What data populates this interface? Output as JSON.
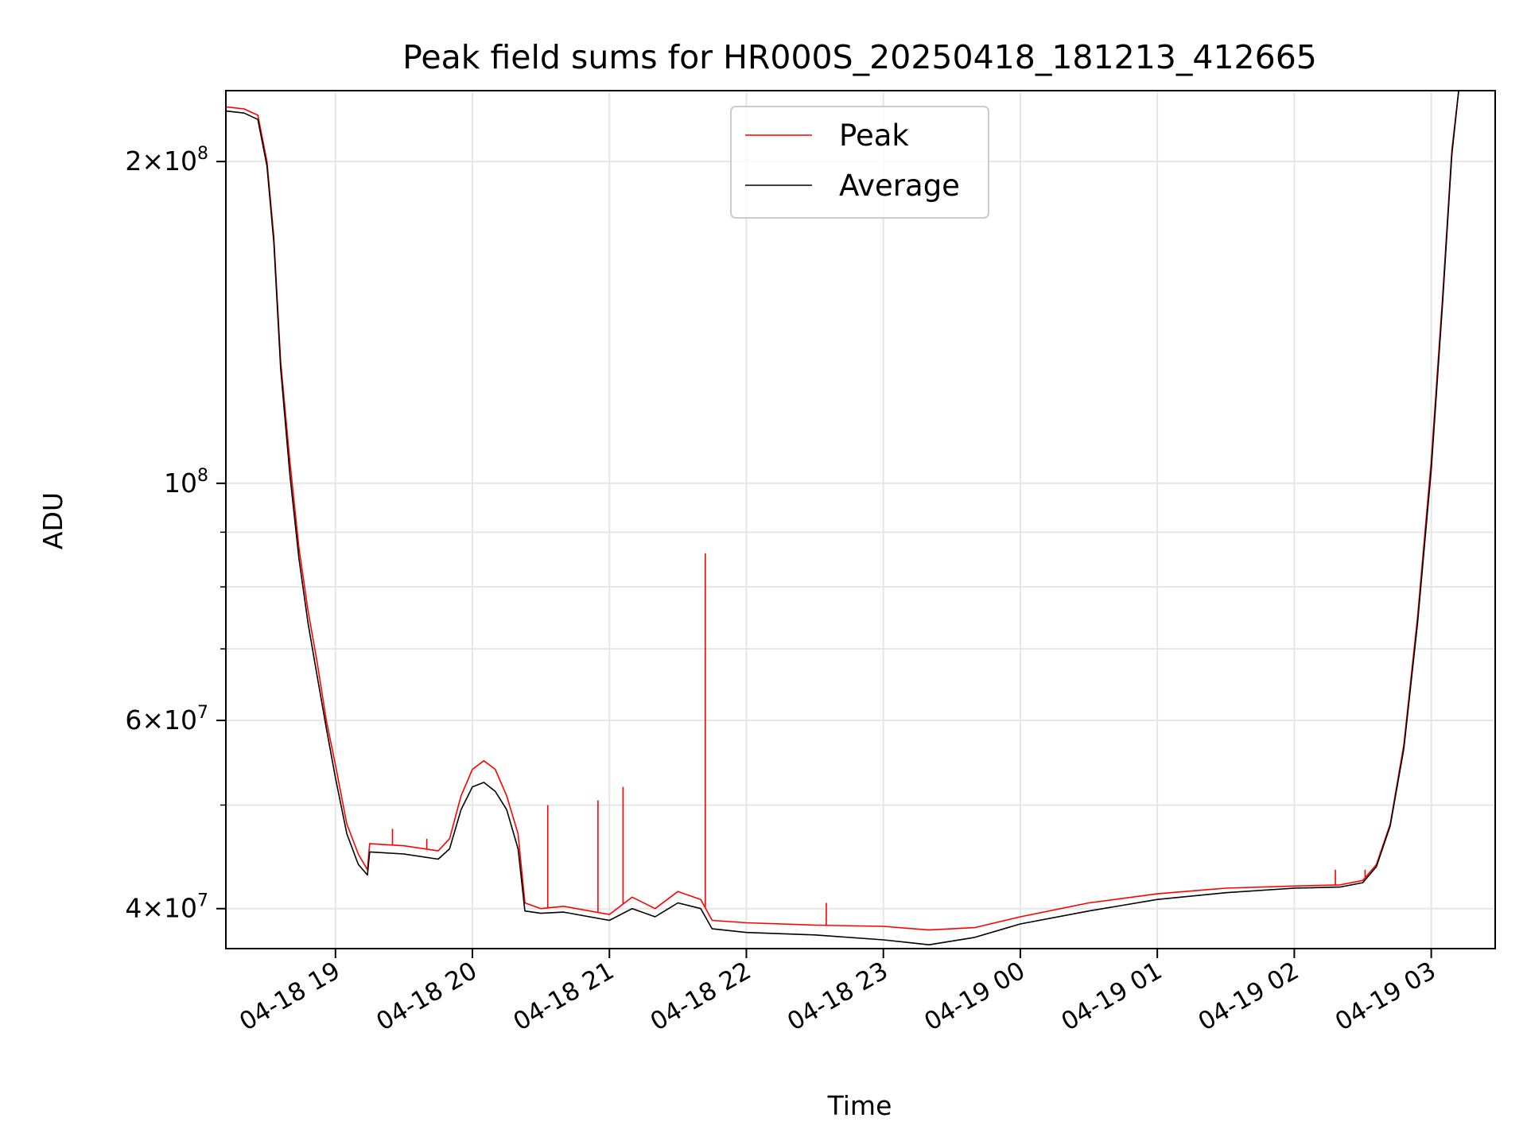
{
  "chart_data": {
    "type": "line",
    "title": "Peak field sums for HR000S_20250418_181213_412665",
    "xlabel": "Time",
    "ylabel": "ADU",
    "yscale": "log",
    "ylim": [
      36700000,
      233000000
    ],
    "xlim": [
      "2025-04-18 18:12",
      "2025-04-19 03:28"
    ],
    "grid": true,
    "legend_position": "upper center",
    "x_ticks": [
      {
        "t": "2025-04-18 19:00",
        "label": "04-18 19"
      },
      {
        "t": "2025-04-18 20:00",
        "label": "04-18 20"
      },
      {
        "t": "2025-04-18 21:00",
        "label": "04-18 21"
      },
      {
        "t": "2025-04-18 22:00",
        "label": "04-18 22"
      },
      {
        "t": "2025-04-18 23:00",
        "label": "04-18 23"
      },
      {
        "t": "2025-04-19 00:00",
        "label": "04-19 00"
      },
      {
        "t": "2025-04-19 01:00",
        "label": "04-19 01"
      },
      {
        "t": "2025-04-19 02:00",
        "label": "04-19 02"
      },
      {
        "t": "2025-04-19 03:00",
        "label": "04-19 03"
      }
    ],
    "y_major_ticks": [
      {
        "v": 40000000,
        "mant": "4",
        "exp": "7"
      },
      {
        "v": 60000000,
        "mant": "6",
        "exp": "7"
      },
      {
        "v": 100000000,
        "mant": "",
        "exp": "8"
      },
      {
        "v": 200000000,
        "mant": "2",
        "exp": "8"
      }
    ],
    "y_minor_ticks": [
      50000000,
      70000000,
      80000000,
      90000000
    ],
    "series": [
      {
        "name": "Peak",
        "color": "#ff0000",
        "points": [
          [
            "2025-04-18 18:12",
            225000000
          ],
          [
            "2025-04-18 18:20",
            224000000
          ],
          [
            "2025-04-18 18:26",
            221000000
          ],
          [
            "2025-04-18 18:30",
            200000000
          ],
          [
            "2025-04-18 18:33",
            170000000
          ],
          [
            "2025-04-18 18:36",
            130000000
          ],
          [
            "2025-04-18 18:40",
            105000000
          ],
          [
            "2025-04-18 18:44",
            87000000
          ],
          [
            "2025-04-18 18:48",
            76000000
          ],
          [
            "2025-04-18 18:52",
            68000000
          ],
          [
            "2025-04-18 18:56",
            60000000
          ],
          [
            "2025-04-18 19:00",
            54500000
          ],
          [
            "2025-04-18 19:05",
            48000000
          ],
          [
            "2025-04-18 19:10",
            45000000
          ],
          [
            "2025-04-18 19:14",
            43500000
          ],
          [
            "2025-04-18 19:15",
            46000000
          ],
          [
            "2025-04-18 19:30",
            45800000
          ],
          [
            "2025-04-18 19:45",
            45300000
          ],
          [
            "2025-04-18 19:50",
            46500000
          ],
          [
            "2025-04-18 19:55",
            51000000
          ],
          [
            "2025-04-18 20:00",
            54000000
          ],
          [
            "2025-04-18 20:05",
            55000000
          ],
          [
            "2025-04-18 20:10",
            54000000
          ],
          [
            "2025-04-18 20:15",
            51000000
          ],
          [
            "2025-04-18 20:20",
            47000000
          ],
          [
            "2025-04-18 20:23",
            40500000
          ],
          [
            "2025-04-18 20:30",
            40000000
          ],
          [
            "2025-04-18 20:40",
            40200000
          ],
          [
            "2025-04-18 21:00",
            39500000
          ],
          [
            "2025-04-18 21:10",
            41000000
          ],
          [
            "2025-04-18 21:20",
            40000000
          ],
          [
            "2025-04-18 21:30",
            41500000
          ],
          [
            "2025-04-18 21:40",
            40800000
          ],
          [
            "2025-04-18 21:45",
            39000000
          ],
          [
            "2025-04-18 22:00",
            38800000
          ],
          [
            "2025-04-18 22:30",
            38600000
          ],
          [
            "2025-04-18 23:00",
            38500000
          ],
          [
            "2025-04-18 23:20",
            38200000
          ],
          [
            "2025-04-18 23:40",
            38400000
          ],
          [
            "2025-04-19 00:00",
            39300000
          ],
          [
            "2025-04-19 00:30",
            40500000
          ],
          [
            "2025-04-19 01:00",
            41300000
          ],
          [
            "2025-04-19 01:30",
            41800000
          ],
          [
            "2025-04-19 02:00",
            42000000
          ],
          [
            "2025-04-19 02:20",
            42100000
          ],
          [
            "2025-04-19 02:30",
            42500000
          ],
          [
            "2025-04-19 02:36",
            44000000
          ],
          [
            "2025-04-19 02:42",
            48000000
          ],
          [
            "2025-04-19 02:48",
            57000000
          ],
          [
            "2025-04-19 02:54",
            75000000
          ],
          [
            "2025-04-19 03:00",
            105000000
          ],
          [
            "2025-04-19 03:05",
            150000000
          ],
          [
            "2025-04-19 03:09",
            205000000
          ],
          [
            "2025-04-19 03:12",
            233000000
          ]
        ],
        "spikes": [
          [
            "2025-04-18 19:25",
            47500000
          ],
          [
            "2025-04-18 19:40",
            46500000
          ],
          [
            "2025-04-18 20:33",
            50000000
          ],
          [
            "2025-04-18 20:55",
            50500000
          ],
          [
            "2025-04-18 21:06",
            52000000
          ],
          [
            "2025-04-18 21:42",
            86000000
          ],
          [
            "2025-04-18 22:35",
            40500000
          ],
          [
            "2025-04-19 02:18",
            43500000
          ],
          [
            "2025-04-19 02:31",
            43500000
          ]
        ]
      },
      {
        "name": "Average",
        "color": "#000000",
        "points": [
          [
            "2025-04-18 18:12",
            223000000
          ],
          [
            "2025-04-18 18:20",
            222000000
          ],
          [
            "2025-04-18 18:26",
            219000000
          ],
          [
            "2025-04-18 18:30",
            198000000
          ],
          [
            "2025-04-18 18:33",
            168000000
          ],
          [
            "2025-04-18 18:36",
            128000000
          ],
          [
            "2025-04-18 18:40",
            102000000
          ],
          [
            "2025-04-18 18:44",
            85000000
          ],
          [
            "2025-04-18 18:48",
            74000000
          ],
          [
            "2025-04-18 18:52",
            66000000
          ],
          [
            "2025-04-18 18:56",
            59000000
          ],
          [
            "2025-04-18 19:00",
            53000000
          ],
          [
            "2025-04-18 19:05",
            47000000
          ],
          [
            "2025-04-18 19:10",
            44000000
          ],
          [
            "2025-04-18 19:14",
            43000000
          ],
          [
            "2025-04-18 19:15",
            45200000
          ],
          [
            "2025-04-18 19:30",
            45000000
          ],
          [
            "2025-04-18 19:45",
            44500000
          ],
          [
            "2025-04-18 19:50",
            45500000
          ],
          [
            "2025-04-18 19:55",
            49500000
          ],
          [
            "2025-04-18 20:00",
            52000000
          ],
          [
            "2025-04-18 20:05",
            52500000
          ],
          [
            "2025-04-18 20:10",
            51500000
          ],
          [
            "2025-04-18 20:15",
            49500000
          ],
          [
            "2025-04-18 20:20",
            45500000
          ],
          [
            "2025-04-18 20:23",
            39800000
          ],
          [
            "2025-04-18 20:30",
            39600000
          ],
          [
            "2025-04-18 20:40",
            39700000
          ],
          [
            "2025-04-18 21:00",
            39000000
          ],
          [
            "2025-04-18 21:10",
            40000000
          ],
          [
            "2025-04-18 21:20",
            39300000
          ],
          [
            "2025-04-18 21:30",
            40500000
          ],
          [
            "2025-04-18 21:40",
            40000000
          ],
          [
            "2025-04-18 21:45",
            38300000
          ],
          [
            "2025-04-18 22:00",
            38000000
          ],
          [
            "2025-04-18 22:30",
            37800000
          ],
          [
            "2025-04-18 23:00",
            37400000
          ],
          [
            "2025-04-18 23:20",
            37000000
          ],
          [
            "2025-04-18 23:40",
            37600000
          ],
          [
            "2025-04-19 00:00",
            38700000
          ],
          [
            "2025-04-19 00:30",
            39800000
          ],
          [
            "2025-04-19 01:00",
            40800000
          ],
          [
            "2025-04-19 01:30",
            41400000
          ],
          [
            "2025-04-19 02:00",
            41800000
          ],
          [
            "2025-04-19 02:20",
            41900000
          ],
          [
            "2025-04-19 02:30",
            42300000
          ],
          [
            "2025-04-19 02:36",
            43800000
          ],
          [
            "2025-04-19 02:42",
            47800000
          ],
          [
            "2025-04-19 02:48",
            56500000
          ],
          [
            "2025-04-19 02:54",
            74000000
          ],
          [
            "2025-04-19 03:00",
            103000000
          ],
          [
            "2025-04-19 03:05",
            148000000
          ],
          [
            "2025-04-19 03:09",
            203000000
          ],
          [
            "2025-04-19 03:12",
            233000000
          ]
        ]
      }
    ]
  }
}
